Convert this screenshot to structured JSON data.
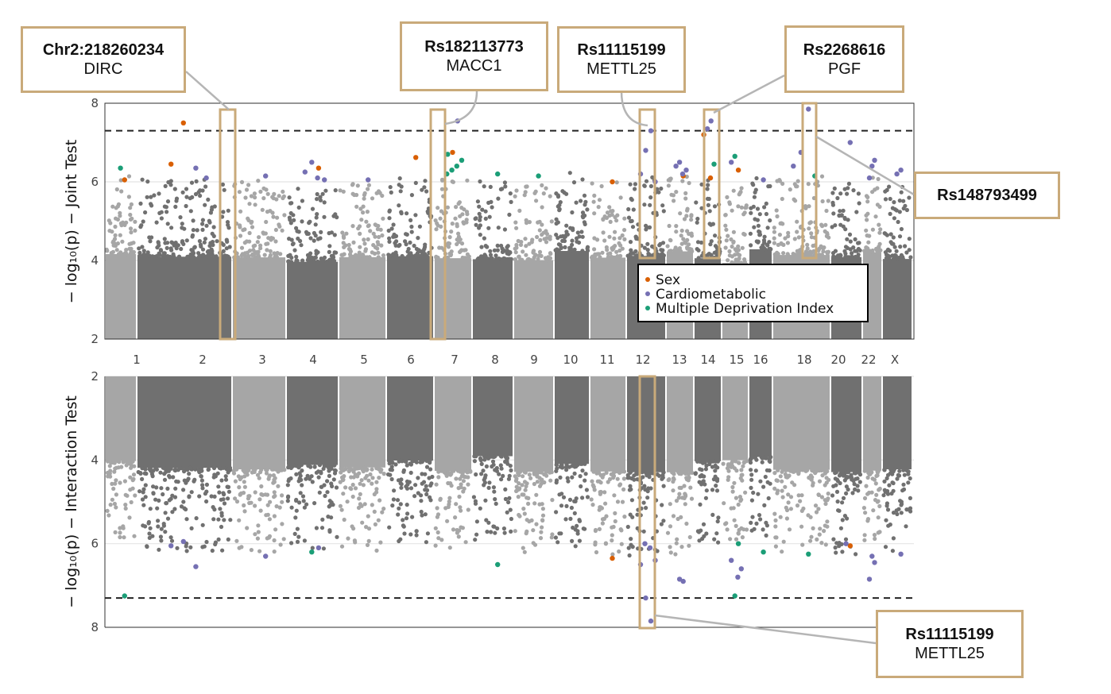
{
  "chart_data": [
    {
      "type": "scatter",
      "panel": "top",
      "ylabel": "− log₁₀(p) − Joint Test",
      "ylim": [
        2,
        8
      ],
      "yticks": [
        2,
        4,
        6,
        8
      ],
      "threshold": 7.3,
      "grid": "horizontal",
      "xtick_labels": [
        "1",
        "2",
        "3",
        "4",
        "5",
        "6",
        "7",
        "8",
        "9",
        "10",
        "11",
        "12",
        "13",
        "14",
        "15",
        "16",
        "18",
        "20",
        "22",
        "X"
      ],
      "legend": {
        "placement": "center-right",
        "entries": [
          {
            "label": "Sex",
            "color": "#d95f02"
          },
          {
            "label": "Cardiometabolic",
            "color": "#7570b3"
          },
          {
            "label": "Multiple Deprivation Index",
            "color": "#1b9e77"
          }
        ]
      },
      "background_series": {
        "colors": [
          "#a6a6a6",
          "#707070"
        ],
        "description": "genome-wide variants, alternating chromosome shading"
      },
      "highlighted_points": [
        {
          "chr": "1",
          "y": 6.05,
          "cat": "Sex"
        },
        {
          "chr": "1",
          "y": 6.35,
          "cat": "Multiple Deprivation Index"
        },
        {
          "chr": "2",
          "y": 6.35,
          "cat": "Cardiometabolic"
        },
        {
          "chr": "2",
          "y": 7.5,
          "cat": "Sex"
        },
        {
          "chr": "2",
          "y": 6.45,
          "cat": "Sex"
        },
        {
          "chr": "2",
          "y": 6.1,
          "cat": "Cardiometabolic"
        },
        {
          "chr": "3",
          "y": 6.15,
          "cat": "Cardiometabolic"
        },
        {
          "chr": "4",
          "y": 6.35,
          "cat": "Sex"
        },
        {
          "chr": "4",
          "y": 6.5,
          "cat": "Cardiometabolic"
        },
        {
          "chr": "4",
          "y": 6.25,
          "cat": "Cardiometabolic"
        },
        {
          "chr": "4",
          "y": 6.05,
          "cat": "Cardiometabolic"
        },
        {
          "chr": "4",
          "y": 6.1,
          "cat": "Cardiometabolic"
        },
        {
          "chr": "5",
          "y": 6.05,
          "cat": "Cardiometabolic"
        },
        {
          "chr": "6",
          "y": 6.62,
          "cat": "Sex"
        },
        {
          "chr": "7",
          "y": 7.55,
          "cat": "Cardiometabolic"
        },
        {
          "chr": "7",
          "y": 6.75,
          "cat": "Sex"
        },
        {
          "chr": "7",
          "y": 6.7,
          "cat": "Multiple Deprivation Index"
        },
        {
          "chr": "7",
          "y": 6.55,
          "cat": "Multiple Deprivation Index"
        },
        {
          "chr": "7",
          "y": 6.4,
          "cat": "Multiple Deprivation Index"
        },
        {
          "chr": "7",
          "y": 6.3,
          "cat": "Multiple Deprivation Index"
        },
        {
          "chr": "7",
          "y": 6.2,
          "cat": "Multiple Deprivation Index"
        },
        {
          "chr": "8",
          "y": 6.2,
          "cat": "Multiple Deprivation Index"
        },
        {
          "chr": "9",
          "y": 6.15,
          "cat": "Multiple Deprivation Index"
        },
        {
          "chr": "11",
          "y": 6.0,
          "cat": "Sex"
        },
        {
          "chr": "12",
          "y": 7.3,
          "cat": "Cardiometabolic"
        },
        {
          "chr": "12",
          "y": 6.8,
          "cat": "Cardiometabolic"
        },
        {
          "chr": "12",
          "y": 6.2,
          "cat": "Cardiometabolic"
        },
        {
          "chr": "12",
          "y": 6.0,
          "cat": "Cardiometabolic"
        },
        {
          "chr": "13",
          "y": 6.15,
          "cat": "Sex"
        },
        {
          "chr": "13",
          "y": 6.5,
          "cat": "Cardiometabolic"
        },
        {
          "chr": "13",
          "y": 6.4,
          "cat": "Cardiometabolic"
        },
        {
          "chr": "13",
          "y": 6.3,
          "cat": "Cardiometabolic"
        },
        {
          "chr": "13",
          "y": 6.2,
          "cat": "Cardiometabolic"
        },
        {
          "chr": "14",
          "y": 7.55,
          "cat": "Cardiometabolic"
        },
        {
          "chr": "14",
          "y": 7.35,
          "cat": "Cardiometabolic"
        },
        {
          "chr": "14",
          "y": 7.2,
          "cat": "Sex"
        },
        {
          "chr": "14",
          "y": 6.45,
          "cat": "Multiple Deprivation Index"
        },
        {
          "chr": "14",
          "y": 6.1,
          "cat": "Sex"
        },
        {
          "chr": "15",
          "y": 6.3,
          "cat": "Sex"
        },
        {
          "chr": "15",
          "y": 6.65,
          "cat": "Multiple Deprivation Index"
        },
        {
          "chr": "15",
          "y": 6.5,
          "cat": "Cardiometabolic"
        },
        {
          "chr": "16",
          "y": 6.05,
          "cat": "Cardiometabolic"
        },
        {
          "chr": "18",
          "y": 7.85,
          "cat": "Cardiometabolic"
        },
        {
          "chr": "18",
          "y": 6.75,
          "cat": "Cardiometabolic"
        },
        {
          "chr": "18",
          "y": 6.4,
          "cat": "Cardiometabolic"
        },
        {
          "chr": "18",
          "y": 6.15,
          "cat": "Multiple Deprivation Index"
        },
        {
          "chr": "20",
          "y": 7.0,
          "cat": "Cardiometabolic"
        },
        {
          "chr": "22",
          "y": 6.55,
          "cat": "Cardiometabolic"
        },
        {
          "chr": "22",
          "y": 6.4,
          "cat": "Cardiometabolic"
        },
        {
          "chr": "22",
          "y": 6.1,
          "cat": "Cardiometabolic"
        },
        {
          "chr": "X",
          "y": 6.3,
          "cat": "Cardiometabolic"
        },
        {
          "chr": "X",
          "y": 6.2,
          "cat": "Cardiometabolic"
        }
      ]
    },
    {
      "type": "scatter",
      "panel": "bottom",
      "ylabel": "− log₁₀(p) − Interaction Test",
      "ylim": [
        2,
        8
      ],
      "yaxis_reversed": true,
      "yticks": [
        2,
        4,
        6,
        8
      ],
      "threshold": 7.3,
      "grid": "horizontal",
      "highlighted_points": [
        {
          "chr": "1",
          "y": 7.25,
          "cat": "Multiple Deprivation Index"
        },
        {
          "chr": "2",
          "y": 6.55,
          "cat": "Cardiometabolic"
        },
        {
          "chr": "2",
          "y": 5.95,
          "cat": "Cardiometabolic"
        },
        {
          "chr": "2",
          "y": 6.05,
          "cat": "Cardiometabolic"
        },
        {
          "chr": "3",
          "y": 6.3,
          "cat": "Cardiometabolic"
        },
        {
          "chr": "4",
          "y": 6.1,
          "cat": "Cardiometabolic"
        },
        {
          "chr": "4",
          "y": 6.2,
          "cat": "Multiple Deprivation Index"
        },
        {
          "chr": "8",
          "y": 6.5,
          "cat": "Multiple Deprivation Index"
        },
        {
          "chr": "11",
          "y": 6.35,
          "cat": "Sex"
        },
        {
          "chr": "12",
          "y": 7.85,
          "cat": "Cardiometabolic"
        },
        {
          "chr": "12",
          "y": 7.3,
          "cat": "Cardiometabolic"
        },
        {
          "chr": "12",
          "y": 6.5,
          "cat": "Cardiometabolic"
        },
        {
          "chr": "12",
          "y": 6.4,
          "cat": "Cardiometabolic"
        },
        {
          "chr": "12",
          "y": 6.1,
          "cat": "Cardiometabolic"
        },
        {
          "chr": "12",
          "y": 6.0,
          "cat": "Cardiometabolic"
        },
        {
          "chr": "13",
          "y": 6.9,
          "cat": "Cardiometabolic"
        },
        {
          "chr": "13",
          "y": 6.85,
          "cat": "Cardiometabolic"
        },
        {
          "chr": "15",
          "y": 6.0,
          "cat": "Multiple Deprivation Index"
        },
        {
          "chr": "15",
          "y": 7.25,
          "cat": "Multiple Deprivation Index"
        },
        {
          "chr": "15",
          "y": 6.4,
          "cat": "Cardiometabolic"
        },
        {
          "chr": "15",
          "y": 6.6,
          "cat": "Cardiometabolic"
        },
        {
          "chr": "15",
          "y": 6.8,
          "cat": "Cardiometabolic"
        },
        {
          "chr": "16",
          "y": 6.2,
          "cat": "Multiple Deprivation Index"
        },
        {
          "chr": "18",
          "y": 6.25,
          "cat": "Multiple Deprivation Index"
        },
        {
          "chr": "20",
          "y": 6.05,
          "cat": "Sex"
        },
        {
          "chr": "20",
          "y": 6.0,
          "cat": "Cardiometabolic"
        },
        {
          "chr": "22",
          "y": 6.45,
          "cat": "Cardiometabolic"
        },
        {
          "chr": "22",
          "y": 6.3,
          "cat": "Cardiometabolic"
        },
        {
          "chr": "22",
          "y": 6.85,
          "cat": "Cardiometabolic"
        },
        {
          "chr": "X",
          "y": 6.25,
          "cat": "Cardiometabolic"
        }
      ]
    }
  ],
  "annotations": [
    {
      "snp": "Chr2:218260234",
      "gene": "DIRC"
    },
    {
      "snp": "Rs182113773",
      "gene": "MACC1"
    },
    {
      "snp": "Rs11115199",
      "gene": "METTL25"
    },
    {
      "snp": "Rs2268616",
      "gene": "PGF"
    },
    {
      "snp": "Rs148793499",
      "gene": ""
    },
    {
      "snp": "Rs11115199",
      "gene": "METTL25"
    }
  ],
  "colors": {
    "sex": "#d95f02",
    "cardiometabolic": "#7570b3",
    "mdi": "#1b9e77",
    "highlight_box": "#c9aa7a",
    "light_gray": "#a6a6a6",
    "dark_gray": "#707070"
  }
}
